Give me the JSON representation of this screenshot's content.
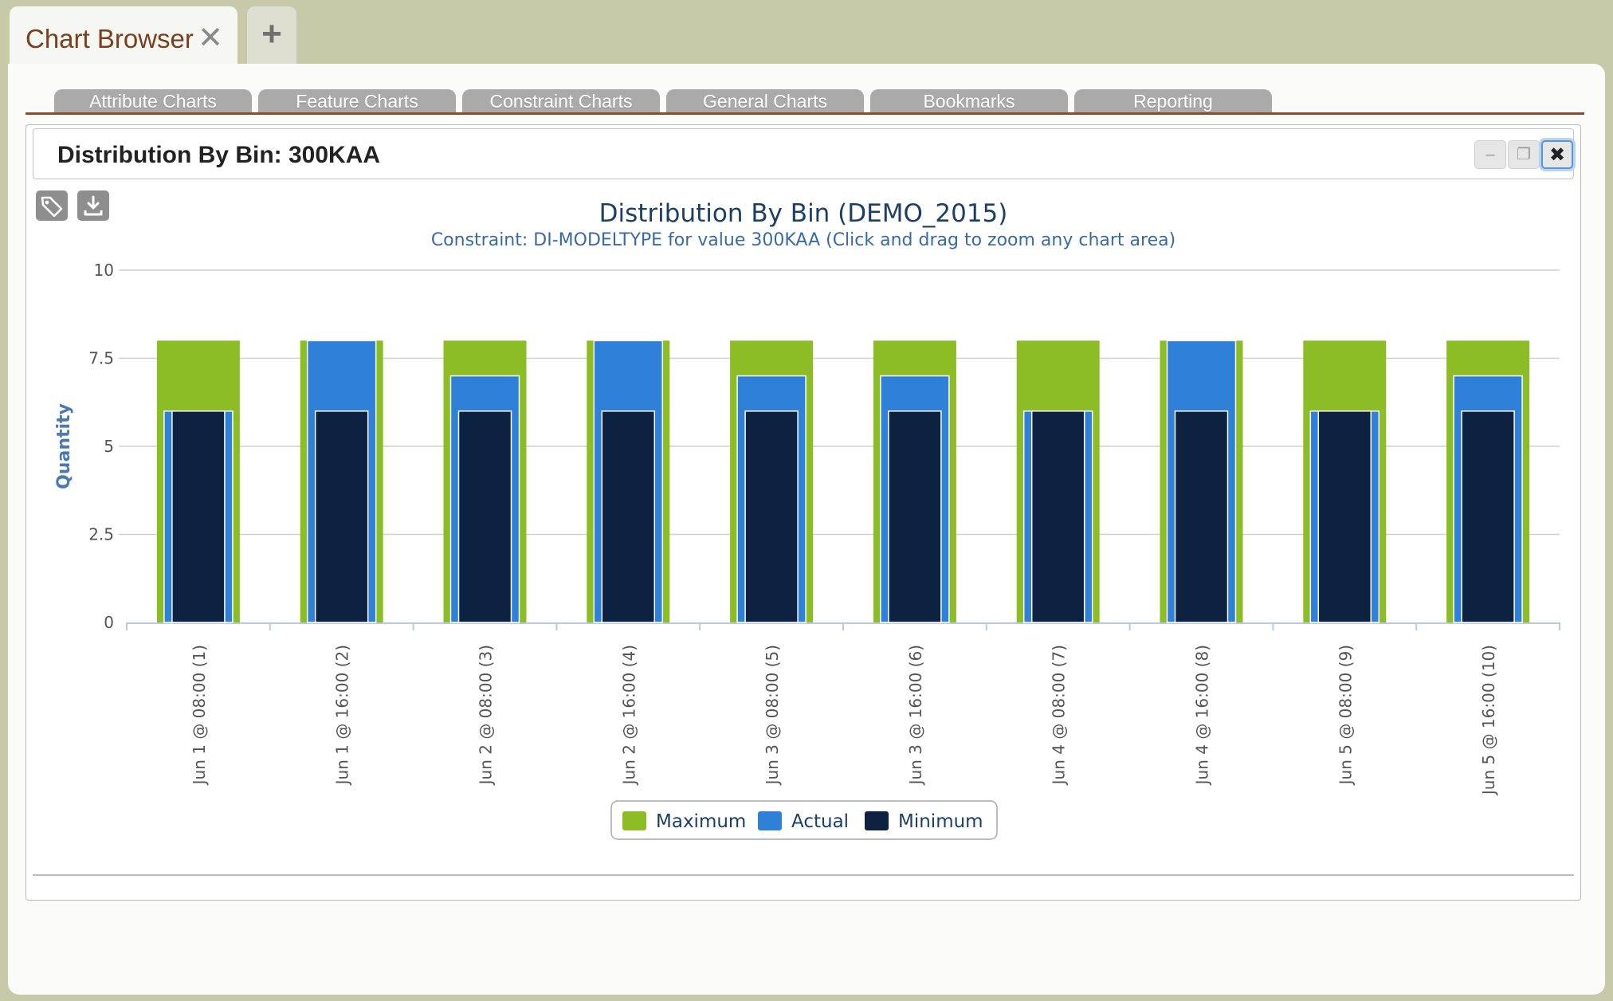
{
  "app": {
    "tab_title": "Chart Browser",
    "close_glyph": "✕",
    "new_tab_glyph": "+"
  },
  "section_tabs": [
    {
      "label": "Attribute Charts"
    },
    {
      "label": "Feature Charts"
    },
    {
      "label": "Constraint Charts"
    },
    {
      "label": "General Charts"
    },
    {
      "label": "Bookmarks"
    },
    {
      "label": "Reporting"
    }
  ],
  "widget": {
    "title": "Distribution By Bin: 300KAA",
    "minimize_glyph": "–",
    "restore_glyph": "❐",
    "close_glyph": "✖"
  },
  "toolbar": {
    "tag_icon": "tag-icon",
    "download_icon": "download-icon"
  },
  "colors": {
    "maximum": "#8dbd24",
    "actual": "#2e80d8",
    "minimum": "#0d2240",
    "grid": "#cfcfcf",
    "axis": "#b9c9de"
  },
  "chart_data": {
    "type": "bar",
    "title": "Distribution By Bin (DEMO_2015)",
    "subtitle": "Constraint: DI-MODELTYPE for value 300KAA (Click and drag to zoom any chart area)",
    "ylabel": "Quantity",
    "xlabel": "",
    "ylim": [
      0,
      10
    ],
    "yticks": [
      0,
      2.5,
      5,
      7.5,
      10
    ],
    "ytick_labels": [
      "0",
      "2.5",
      "5",
      "7.5",
      "10"
    ],
    "grid": true,
    "legend_position": "bottom-center",
    "categories": [
      "Jun 1 @ 08:00 (1)",
      "Jun 1 @ 16:00 (2)",
      "Jun 2 @ 08:00 (3)",
      "Jun 2 @ 16:00 (4)",
      "Jun 3 @ 08:00 (5)",
      "Jun 3 @ 16:00 (6)",
      "Jun 4 @ 08:00 (7)",
      "Jun 4 @ 16:00 (8)",
      "Jun 5 @ 08:00 (9)",
      "Jun 5 @ 16:00 (10)"
    ],
    "series": [
      {
        "name": "Maximum",
        "values": [
          8,
          8,
          8,
          8,
          8,
          8,
          8,
          8,
          8,
          8
        ]
      },
      {
        "name": "Actual",
        "values": [
          6,
          8,
          7,
          8,
          7,
          7,
          6,
          8,
          6,
          7
        ]
      },
      {
        "name": "Minimum",
        "values": [
          6,
          6,
          6,
          6,
          6,
          6,
          6,
          6,
          6,
          6
        ]
      }
    ]
  }
}
